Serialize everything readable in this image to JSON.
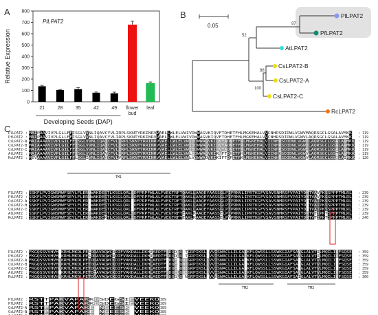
{
  "panels": {
    "a": "A",
    "b": "B",
    "c": "C"
  },
  "colors": {
    "bar_default": "#000000",
    "bar_flower": "#ee1111",
    "bar_leaf": "#22bb55",
    "highlight_box": "#e2e2e2",
    "box_red": "#dd2222",
    "node_pl": "#8899ee",
    "node_pf": "#118877",
    "node_at": "#33dddd",
    "node_cs": "#eedd11",
    "node_rc": "#ee7711"
  },
  "chart_data": {
    "type": "bar",
    "title": "PlLPAT2",
    "ylabel": "Relative Expression",
    "xlabel": "Developing Seeds (DAP)",
    "ylim": [
      0,
      800
    ],
    "yticks": [
      0,
      100,
      200,
      300,
      400,
      500,
      600,
      700,
      800
    ],
    "categories": [
      "21",
      "28",
      "35",
      "42",
      "49",
      "flower bud",
      "leaf"
    ],
    "values": [
      137,
      104,
      112,
      80,
      75,
      680,
      165
    ],
    "errors": [
      8,
      5,
      12,
      6,
      10,
      30,
      10
    ],
    "grid": false
  },
  "tree": {
    "scale_label": "0.05",
    "leaves": [
      "PlLPAT2",
      "PfLPAT2",
      "AtLPAT2",
      "CsLPAT2-B",
      "CsLPAT2-A",
      "CsLPAT2-C",
      "RcLPAT2"
    ],
    "bootstrap": [
      "97",
      "52",
      "88",
      "100"
    ]
  },
  "alignment": {
    "names": [
      "PlLPAT2",
      "PfLPAT2",
      "CsLPAT2-A",
      "CsLPAT2-B",
      "CsLPAT2-C",
      "AtLPAT2",
      "RcLPAT2"
    ],
    "blocks": [
      {
        "ends": [
          "119",
          "119",
          "119",
          "119",
          "119",
          "119",
          "120"
        ],
        "seqs": [
          "MAIPAAVIVPLGLLFFISGLVVNLIQAVCYVLIRPLSKNTYRKINRVVAELLWLELVWIVDWWAGVKIQVFTDHETFHLMGKEHALVVCNHRSDIDWLVGWVMAQRSGCLGSALAVMKK",
          "MAIPAAVIVPLGLLFFISGLVVNLIQAVCYVLIRPLSKNTYRKINRVVAELLWLELVWIVDWWAGVKIQVFTDHETFHLMGKEHALVVCNHRSDIDWLVGWVLAQRSGCLGSALAVMKK",
          "MAIAAAAVIVPLGILFFISGLVVNLIQAICFVLIRPLSKNTYRRINRVVAELLWLELVWIIDWWAGVKIQVYADNETFRLMGKEHALVICNHRSDIDWLVGWILAQRSGCLGSALAVMKK",
          "MAIAAAAVIVPLGILFFISGLVVNLIQAICFVLIRPLSKNTYRRINRVVAELLWLELVWIIDWWAGVKIQVYADNETFRLMGKEHALVICNHRSDIDWLVGWILAQRSGCLGSALAVMKK",
          "MAIAAAAVIVPLGILFFISGLVVNLIQAICFVLIRPLSKNTYRRINRVVAELLWLELVWIIDWWAGVKIQVYADNETFRLMGKEHALVICNHRSDIDWLVGWILAQRSGCLGSALAVMKK",
          "MAIAAAAVIVPLGILFFISGLVVNLIQAVCFVLIRPLSKNTYRRINRVVAELLWLELVWLIDWWAGVKIKVFTDHETFHLMGKEHALVICNHKSDIDWLVGWVLAQRSGCLGSTLAVMKK",
          "MEVAAAAVIVPLGILFFLSGLIVNLIQAICFVLVRPLSKNTYRRINRVVAELLWLELVWLVDWWADVKIKIFTDPETFKLMGKEHALVICNHRSDIDWLVGWVLAQRSGCLGSALAIMKK"
        ]
      },
      {
        "ends": [
          "239",
          "239",
          "239",
          "239",
          "239",
          "239",
          "240"
        ],
        "seqs": [
          "SSKFLPVIGWSMWFSEYLFLERNWAKDESTLKSGLQRLSDFPRPFWLALFVEGTRFTQAKLLAAQEYAASSGLPIPRNVLIPRTKGFVSAVSNMRSFVPAIYDMTVAVPKSSPPPTMLRL",
          "SSKFLPVIGWSMWFSEYLFLERNWAKDESTLKSGLQRLSDFPRPFWLALFVEGTRFTQAKLLAAQEYAASSGLPIPRNVLIPRTKGFVSAVSNMRSFVPAIYDMTVAVPKSSPPPTMLRL",
          "SSKFLPVIGWSMWFSEYLFLERSWAKDESTLKSGLQRLKDFPRPFWLALFVEGTRFTQAKLLAAQEYAASSGLPIPRNVLIPRTKGFVSAVSNMRSFVPAIYDVTVAIPKSSPPPTMLRL",
          "SSKFLPVIGWSMWFSEYLFLERSWAKDESTLKSGLQRLKDFPRPFWLALFVEGTRFTQAKLLAAQEYAASSGLPIPRNVLIPRTKGFVSAVSNMRSFVPAIYDVTVAIPKSSPPPTMLRL",
          "SSKFLPVIGWSMWFSEYLFLERSWAKDESTLKSGLQRLKDFPRPFWLALFVEGTRFTQAKLLAAQEYAASSGLPIPRNVLIPRTKGFVSAVSNMRSFVPAIYDVTVAIPKSSPPPTMLRL",
          "SSKFLPVIGWSMWFSEYLFLERNWAKDESTLKSGLQRLSDFPRPFWLALFVEGTRFTEAKLKAAQEYAASSELPIPRNVLIPRTKGFVSAVSNMRSFVPAIYDMTVTIPKTSPPPTMLRL",
          "SSKFLPVIGWSMWFSEYLFLERNWAKDEKTLKSGLQRLSDFPRPFWLALFVEGTRFTEAKLKAAQEYAASSELPVPRNVLIPRTKGFVSAVSNMRSFVPAIYDMTVTIPKTSPPPTMLRL"
        ]
      },
      {
        "ends": [
          "359",
          "359",
          "359",
          "359",
          "359",
          "359",
          "360"
        ],
        "seqs": [
          "FKGQSSVVHVHIKRHLMKDLPESDDAVAQWCRDIFVAKDALLDKHIAEDTFSDQDLQDTGRPIKSLVVVISWACLLILGAIKFLQWSSLLSSWKGIAFSAVGLALVTILMQILIQFSQSE",
          "FKGQSSVVHVHIKRHLMKDLPESDDAVAQWCRDIFVAKDALLDKHIAEDTFSDQDLQDTGRPIKSLVVVISWACLLILGAIKFLQWSSLLSSWKGIAFSAVGLALVTILMQILIQFSQSE",
          "FKGQSSVVHVHLKRHLMKDLPETDDAVAQWCKDIFVAKDALLDKHLAEDTFGDQEIQNIGRPIKSLLVVISWACLLILGAMKFLQWSSLLSSWKGIAFSAAGLALVTVLMQILILFSQSE",
          "FKGQSSVVHVHLKRHLMKDLPETDDAVAQWCKDIFVAKDALLDKHLAEDTFGDQEIQNIGRPIKSLLVVISWACLLILGAMKFLQWSSLLSSWKGIAFSAAGLALVTVLMQILILFSQSE",
          "FKGQSSVVHVHLKRHLMKDLPETDDAVAQWCKDIFVAKDALLDKHLAEDTFGDQEIQNIGRPIKSLLVVISWACLLILGAMKFLQWSSLLSSWKGIAFSAAGLALVTVLMQILILFSQSE",
          "FKGQSSVVHVHIKRHLMKDLPETDEAVAQWCKDIFVAKDALLDKHLAEDTFSDQELQNIGRPIKSLLVVISWACLLILGAIKFLQWSSLLSSWKGIAFSAVGLALVTVLMQILIQFSQSE",
          "FKGQSSVVHVHLKRHLMKDLPETDDAVAQWCKDIFVAKDALLDKHLAEDTFSDQGLQDNGRPIKSLVVVVSWACLLILGAIKFLQWSSLLSSWKGIAFSAIGLALVTVLMQILIQFSQSE"
        ]
      },
      {
        "ends": [
          "389",
          "389",
          "389",
          "389",
          "389",
          "389",
          "395"
        ],
        "seqs": [
          "RSTTPAKVAPAKKDSDEGSIEVEEKQ",
          "RSTTPAKVAPAKKDSDEGSIEVEEKQ",
          "RSTPPAKVAPAKENNGEESKQVEEKQ",
          "RSTPPAKVAPAKENNGEESKQVEEKQ",
          "RSTPPAKVAPAKENNGEESKQVEEKQ",
          "RSTAPARVAPAKRDNNEESTEVEEKQ",
          "RSTVPAKVAPANNRNGEEATEVEEKQQSSK"
        ]
      }
    ],
    "tm_labels": [
      "TM1",
      "TM2",
      "TM3"
    ],
    "marker": "*"
  }
}
